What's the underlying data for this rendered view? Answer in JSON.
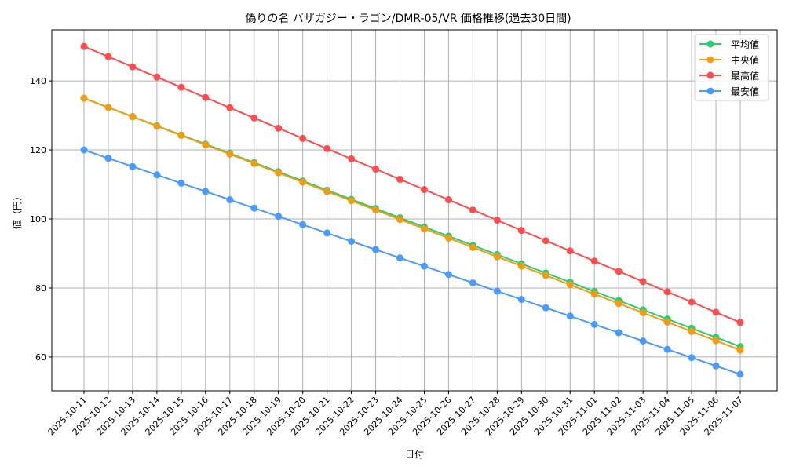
{
  "chart_data": {
    "type": "line",
    "title": "偽りの名 バザガジー・ラゴン/DMR-05/VR 価格推移(過去30日間)",
    "xlabel": "日付",
    "ylabel": "値（円）",
    "ylim": [
      50.2,
      154.8
    ],
    "yticks": [
      60,
      80,
      100,
      120,
      140
    ],
    "grid": true,
    "legend_position": "top-right",
    "x": [
      "2025-10-11",
      "2025-10-12",
      "2025-10-13",
      "2025-10-14",
      "2025-10-15",
      "2025-10-16",
      "2025-10-17",
      "2025-10-18",
      "2025-10-19",
      "2025-10-20",
      "2025-10-21",
      "2025-10-22",
      "2025-10-23",
      "2025-10-24",
      "2025-10-25",
      "2025-10-26",
      "2025-10-27",
      "2025-10-28",
      "2025-10-29",
      "2025-10-30",
      "2025-10-31",
      "2025-11-01",
      "2025-11-02",
      "2025-11-03",
      "2025-11-04",
      "2025-11-05",
      "2025-11-06",
      "2025-11-07"
    ],
    "series": [
      {
        "name": "平均値",
        "color": "#2ecc71",
        "values": [
          135,
          132.33,
          129.67,
          127,
          124.33,
          121.67,
          119,
          116.33,
          113.67,
          111,
          108.33,
          105.67,
          103,
          100.33,
          97.67,
          95,
          92.33,
          89.67,
          87,
          84.33,
          81.67,
          79,
          76.33,
          73.67,
          71,
          68.33,
          65.67,
          63
        ]
      },
      {
        "name": "中央値",
        "color": "#f39c12",
        "values": [
          135,
          132.3,
          129.59,
          126.89,
          124.19,
          121.48,
          118.78,
          116.07,
          113.37,
          110.67,
          107.96,
          105.26,
          102.56,
          99.85,
          97.15,
          94.44,
          91.74,
          89.04,
          86.33,
          83.63,
          80.93,
          78.22,
          75.52,
          72.81,
          70.11,
          67.41,
          64.7,
          62
        ]
      },
      {
        "name": "最高値",
        "color": "#ff4d4f",
        "values": [
          150,
          147.04,
          144.07,
          141.11,
          138.15,
          135.19,
          132.22,
          129.26,
          126.3,
          123.33,
          120.37,
          117.41,
          114.44,
          111.48,
          108.52,
          105.56,
          102.59,
          99.63,
          96.67,
          93.7,
          90.74,
          87.78,
          84.81,
          81.85,
          78.89,
          75.93,
          72.96,
          70
        ]
      },
      {
        "name": "最安値",
        "color": "#4a9bff",
        "values": [
          120,
          117.59,
          115.19,
          112.78,
          110.37,
          107.96,
          105.56,
          103.15,
          100.74,
          98.33,
          95.93,
          93.52,
          91.11,
          88.7,
          86.3,
          83.89,
          81.48,
          79.07,
          76.67,
          74.26,
          71.85,
          69.44,
          67.04,
          64.63,
          62.22,
          59.81,
          57.41,
          55
        ]
      }
    ]
  }
}
